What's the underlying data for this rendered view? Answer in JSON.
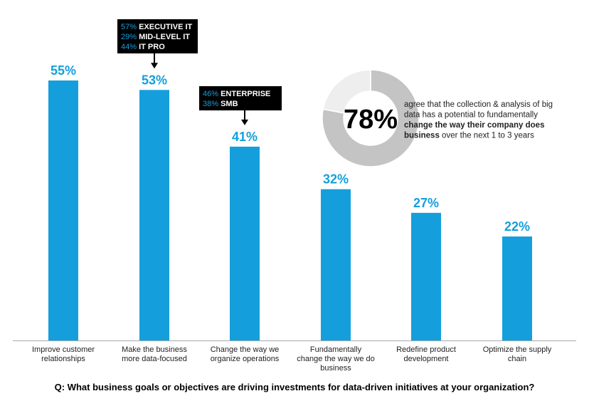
{
  "chart_data": {
    "type": "bar",
    "title": "Q: What business goals or objectives are driving investments for data-driven initiatives at your organization?",
    "categories": [
      [
        "Improve customer",
        "relationships"
      ],
      [
        "Make the business",
        "more data-focused"
      ],
      [
        "Change the way we",
        "organize operations"
      ],
      [
        "Fundamentally",
        "change the way we do",
        "business"
      ],
      [
        "Redefine product",
        "development"
      ],
      [
        "Optimize the supply",
        "chain"
      ]
    ],
    "values": [
      55,
      53,
      41,
      32,
      27,
      22
    ],
    "value_labels": [
      "55%",
      "53%",
      "41%",
      "32%",
      "27%",
      "22%"
    ],
    "ylim": [
      0,
      55
    ],
    "grid": false,
    "bar_color": "#149fdc",
    "annotations": [
      {
        "bar_index": 1,
        "lines": [
          {
            "pct": "57%",
            "text": "EXECUTIVE IT"
          },
          {
            "pct": "29%",
            "text": "MID-LEVEL IT"
          },
          {
            "pct": "44%",
            "text": "IT PRO"
          }
        ]
      },
      {
        "bar_index": 2,
        "lines": [
          {
            "pct": "46%",
            "text": "ENTERPRISE"
          },
          {
            "pct": "38%",
            "text": "SMB"
          }
        ]
      }
    ],
    "donut": {
      "value": 78,
      "label": "78%",
      "text_lines": [
        [
          {
            "t": "agree that the collection & analysis of big",
            "b": false
          }
        ],
        [
          {
            "t": "data has a potential to fundamentally",
            "b": false
          }
        ],
        [
          {
            "t": "change the way their company does",
            "b": true
          }
        ],
        [
          {
            "t": "business",
            "b": true
          },
          {
            "t": " over the next 1 to 3 years",
            "b": false
          }
        ]
      ],
      "fill_color": "#c4c4c4",
      "rest_color": "#eeeeee"
    }
  }
}
